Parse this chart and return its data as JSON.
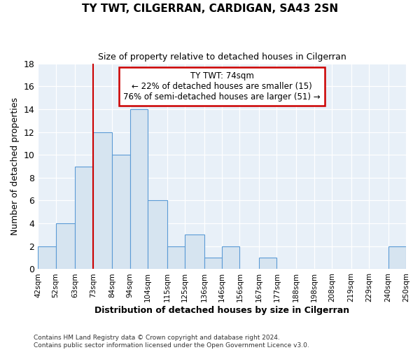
{
  "title": "TY TWT, CILGERRAN, CARDIGAN, SA43 2SN",
  "subtitle": "Size of property relative to detached houses in Cilgerran",
  "xlabel": "Distribution of detached houses by size in Cilgerran",
  "ylabel": "Number of detached properties",
  "bin_edges": [
    42,
    52,
    63,
    73,
    84,
    94,
    104,
    115,
    125,
    136,
    146,
    156,
    167,
    177,
    188,
    198,
    208,
    219,
    229,
    240,
    250
  ],
  "bar_heights": [
    2,
    4,
    9,
    12,
    10,
    14,
    6,
    2,
    3,
    1,
    2,
    0,
    1,
    0,
    0,
    0,
    0,
    0,
    0,
    2
  ],
  "bar_color": "#d6e4f0",
  "bar_edge_color": "#5b9bd5",
  "vline_x": 73,
  "vline_color": "#cc0000",
  "ylim": [
    0,
    18
  ],
  "annotation_title": "TY TWT: 74sqm",
  "annotation_line1": "← 22% of detached houses are smaller (15)",
  "annotation_line2": "76% of semi-detached houses are larger (51) →",
  "annotation_box_color": "#ffffff",
  "annotation_box_edge": "#cc0000",
  "tick_labels": [
    "42sqm",
    "52sqm",
    "63sqm",
    "73sqm",
    "84sqm",
    "94sqm",
    "104sqm",
    "115sqm",
    "125sqm",
    "136sqm",
    "146sqm",
    "156sqm",
    "167sqm",
    "177sqm",
    "188sqm",
    "198sqm",
    "208sqm",
    "219sqm",
    "229sqm",
    "240sqm",
    "250sqm"
  ],
  "footer_line1": "Contains HM Land Registry data © Crown copyright and database right 2024.",
  "footer_line2": "Contains public sector information licensed under the Open Government Licence v3.0.",
  "background_color": "#ffffff",
  "plot_bg_color": "#e8f0f8",
  "grid_color": "#ffffff"
}
